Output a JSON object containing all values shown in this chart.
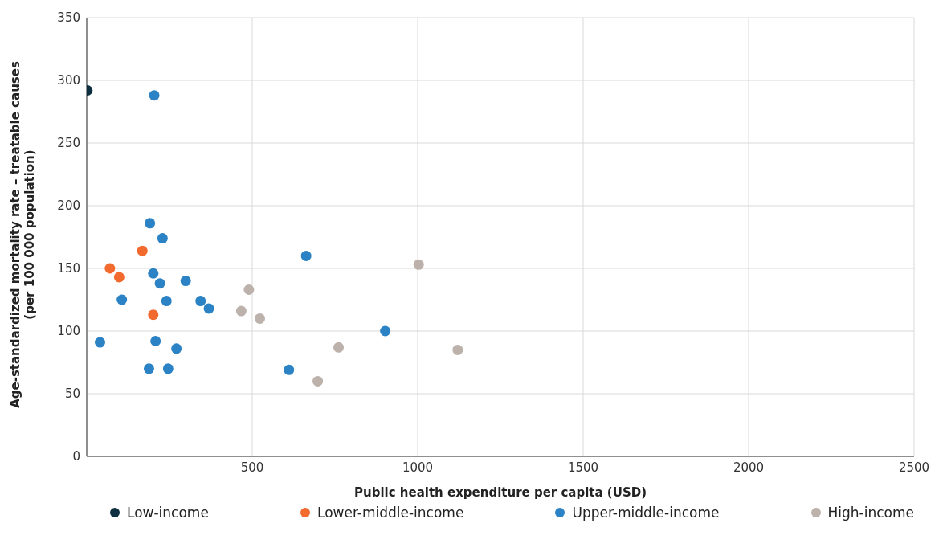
{
  "chart_data": {
    "type": "scatter",
    "xlabel": "Public health expenditure per capita (USD)",
    "ylabel": "Age-standardized mortality rate – treatable causes\n(per 100 000 population)",
    "xlim": [
      0,
      2500
    ],
    "xticks": [
      500,
      1000,
      1500,
      2000,
      2500
    ],
    "ylim": [
      0,
      350
    ],
    "yticks": [
      0,
      50,
      100,
      150,
      200,
      250,
      300,
      350
    ],
    "grid": true,
    "legend": "bottom",
    "marker": "circle",
    "series": [
      {
        "name": "Low-income",
        "color": "#0d2f3f",
        "x": [
          2
        ],
        "values": [
          292
        ]
      },
      {
        "name": "Lower-middle-income",
        "color": "#f26a2e",
        "x": [
          70,
          98,
          168,
          201
        ],
        "values": [
          150,
          143,
          164,
          113
        ]
      },
      {
        "name": "Upper-middle-income",
        "color": "#2b82c4",
        "x": [
          204,
          40,
          106,
          191,
          229,
          201,
          221,
          241,
          299,
          208,
          271,
          188,
          246,
          344,
          369,
          663,
          611,
          902
        ],
        "values": [
          288,
          91,
          125,
          186,
          174,
          146,
          138,
          124,
          140,
          92,
          86,
          70,
          70,
          124,
          118,
          160,
          69,
          100
        ]
      },
      {
        "name": "High-income",
        "color": "#bcb1ab",
        "x": [
          467,
          490,
          523,
          761,
          698,
          1003,
          1121
        ],
        "values": [
          116,
          133,
          110,
          87,
          60,
          153,
          85
        ]
      }
    ]
  }
}
